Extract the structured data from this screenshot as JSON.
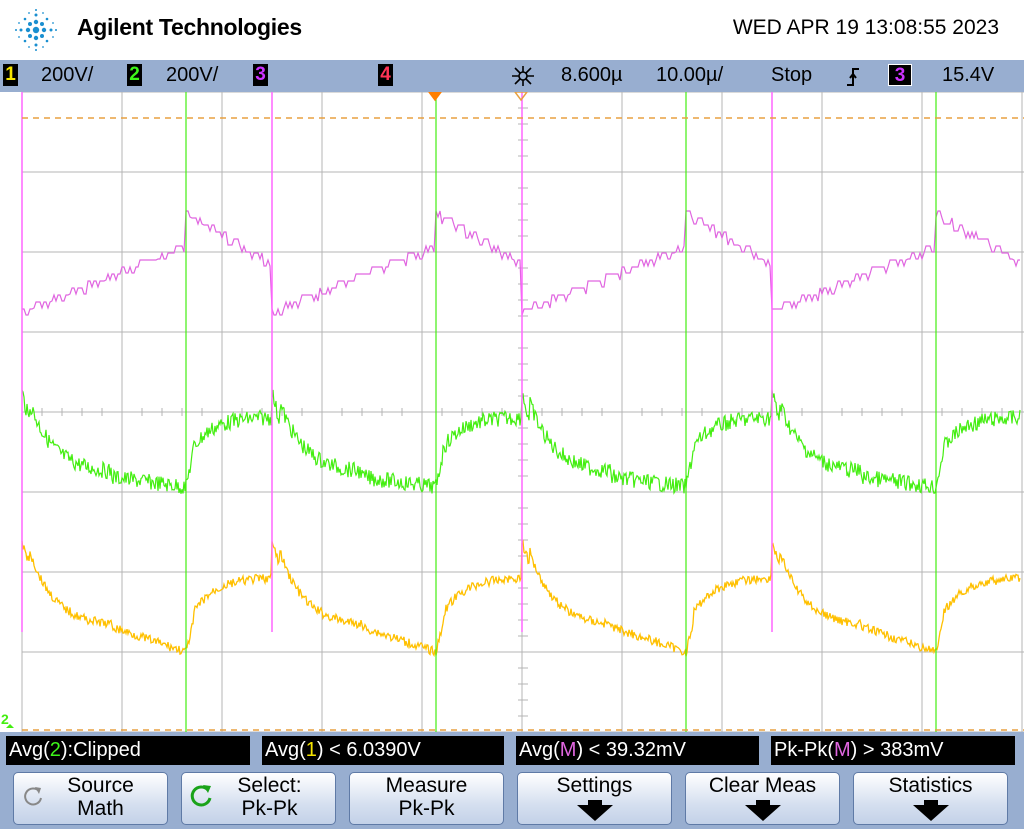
{
  "header": {
    "brand": "Agilent Technologies",
    "datetime": "WED APR 19 13:08:55 2023"
  },
  "status": {
    "ch1_num": "1",
    "ch1_scale": "200V/",
    "ch2_num": "2",
    "ch2_scale": "200V/",
    "ch3_num": "3",
    "ch4_num": "4",
    "trigger_icon": "trigger-delay-icon",
    "delay": "8.600µ",
    "timebase": "10.00µ/",
    "run_state": "Stop",
    "trig_slope_icon": "rising-edge-icon",
    "trig_src_num": "3",
    "trig_level": "15.4V",
    "colors": {
      "ch1": "#f5c400",
      "ch2": "#3ef51a",
      "ch3": "#cc33ff",
      "ch4": "#ff3355"
    }
  },
  "traces": {
    "ch1_color": "#ffc000",
    "ch2_color": "#44ee11",
    "math_color": "#e066e0",
    "grid_color": "#b4b4b4",
    "ground_marker": "2"
  },
  "measurements": [
    {
      "label_pre": "Avg(",
      "src": "2",
      "label_post": "):Clipped",
      "src_color": "#3ef51a"
    },
    {
      "label_pre": "Avg(",
      "src": "1",
      "label_post": ") < 6.0390V",
      "src_color": "#f5e400"
    },
    {
      "label_pre": "Avg(",
      "src": "M",
      "label_post": ") < 39.32mV",
      "src_color": "#e066e0"
    },
    {
      "label_pre": "Pk-Pk(",
      "src": "M",
      "label_post": ") > 383mV",
      "src_color": "#e066e0"
    }
  ],
  "softkeys": {
    "source": {
      "l1": "Source",
      "l2": "Math"
    },
    "select": {
      "l1": "Select:",
      "l2": "Pk-Pk"
    },
    "measure": {
      "l1": "Measure",
      "l2": "Pk-Pk"
    },
    "settings": {
      "l1": "Settings"
    },
    "clear": {
      "l1": "Clear Meas"
    },
    "statistics": {
      "l1": "Statistics"
    }
  }
}
